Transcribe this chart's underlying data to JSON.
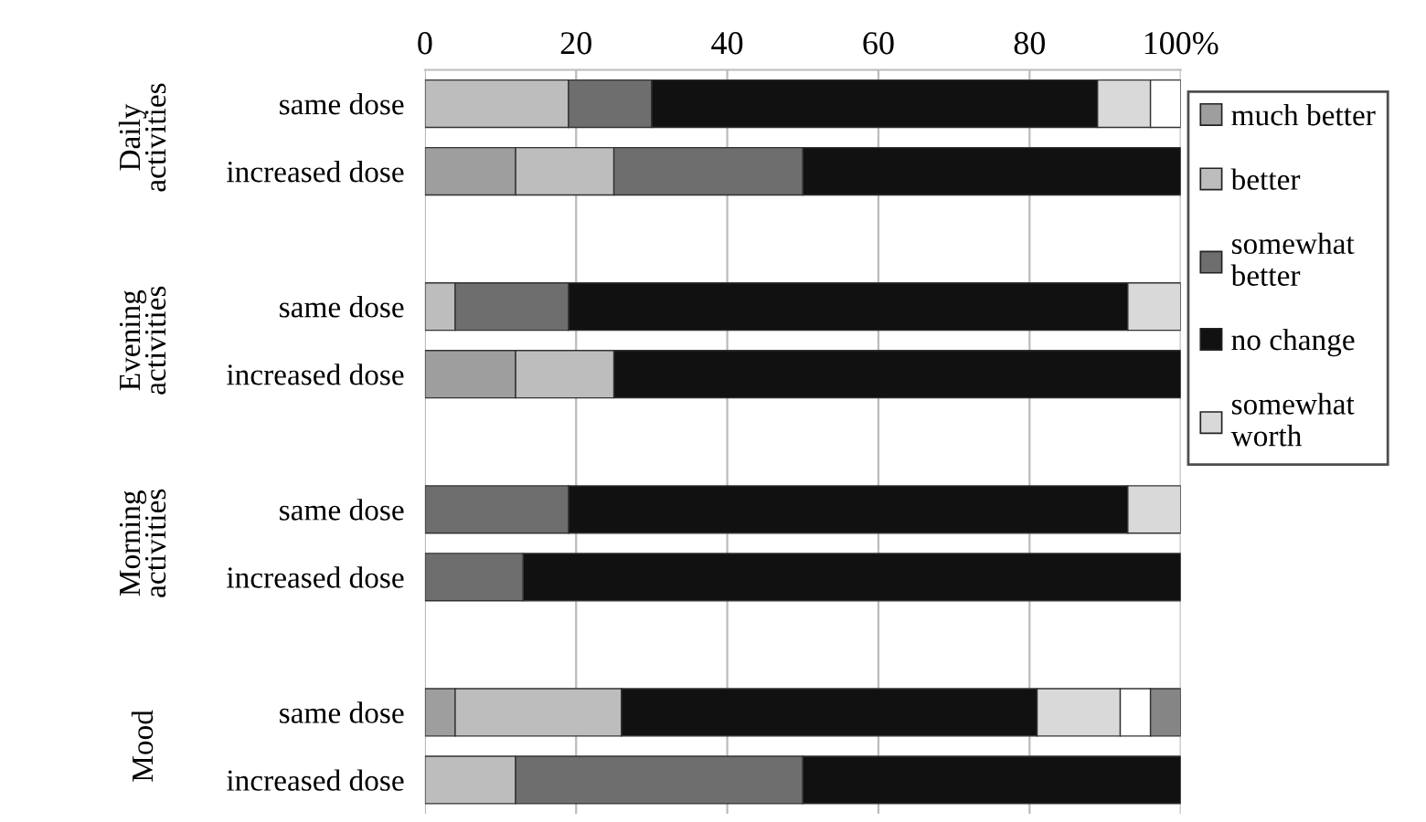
{
  "chart_data": {
    "type": "bar",
    "orientation": "horizontal",
    "stacked": true,
    "categories": [
      "same dose",
      "increased dose",
      null,
      "same dose",
      "increased dose",
      null,
      "same dose",
      "increased dose",
      null,
      "same dose",
      "increased dose"
    ],
    "series": [
      {
        "name": "much better",
        "color": "#9e9e9e",
        "values": [
          0,
          12,
          0,
          0,
          12,
          0,
          0,
          0,
          0,
          4,
          0
        ]
      },
      {
        "name": "better",
        "color": "#bdbdbd",
        "values": [
          19,
          13,
          0,
          4,
          13,
          0,
          0,
          0,
          0,
          22,
          12
        ]
      },
      {
        "name": "somewhat better",
        "color": "#6e6e6e",
        "values": [
          11,
          25,
          0,
          15,
          0,
          0,
          19,
          13,
          0,
          0,
          38
        ]
      },
      {
        "name": "no change",
        "color": "#111111",
        "values": [
          59,
          50,
          0,
          74,
          75,
          0,
          74,
          87,
          0,
          55,
          50
        ]
      },
      {
        "name": "somewhat worth",
        "color": "#d9d9d9",
        "values": [
          7,
          0,
          0,
          7,
          0,
          0,
          7,
          0,
          0,
          11,
          0
        ]
      },
      {
        "color": "#ffffff",
        "values": [
          4,
          0,
          0,
          0,
          0,
          0,
          0,
          0,
          0,
          4,
          0
        ]
      },
      {
        "color": "#858585",
        "values": [
          0,
          0,
          0,
          0,
          0,
          0,
          0,
          0,
          0,
          4,
          0
        ]
      }
    ],
    "annotations": [
      "Daily activities",
      "Evening activities",
      "Morning activities",
      "Mood"
    ],
    "xlim": [
      0,
      100
    ],
    "xticks": [
      0,
      20,
      40,
      60,
      80,
      {
        "value": 100,
        "label": "100%"
      }
    ],
    "grid": "x",
    "legend": "right"
  }
}
